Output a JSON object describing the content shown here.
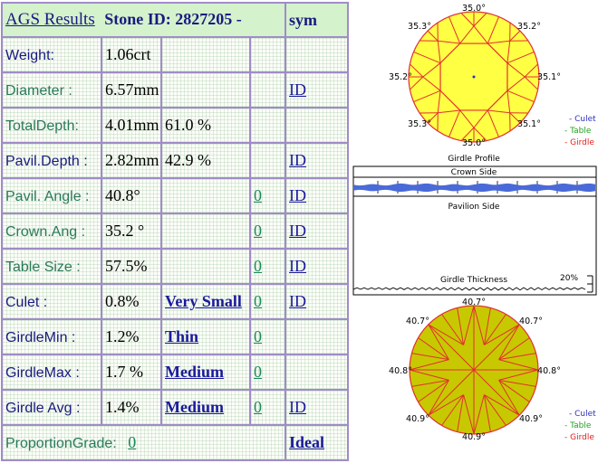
{
  "header": {
    "title": "AGS  Results",
    "stone_id": "Stone ID:  2827205 -",
    "sym": "sym"
  },
  "rows": [
    {
      "label": "Weight:",
      "value": "1.06crt",
      "extra": "",
      "grade": "",
      "link": ""
    },
    {
      "label": "Diameter :",
      "value": "6.57mm",
      "extra": "",
      "grade": "",
      "link": "ID"
    },
    {
      "label": "TotalDepth:",
      "value": "4.01mm",
      "extra": "61.0 %",
      "grade": "",
      "link": ""
    },
    {
      "label": "Pavil.Depth :",
      "value": "2.82mm",
      "extra": "42.9 %",
      "grade": "",
      "link": "ID"
    },
    {
      "label": "Pavil. Angle :",
      "value": "40.8°",
      "extra": "",
      "grade": "0",
      "link": "ID "
    },
    {
      "label": "Crown.Ang :",
      "value": "35.2 °",
      "extra": "",
      "grade": "0",
      "link": "ID"
    },
    {
      "label": "Table Size :",
      "value": "57.5%",
      "extra": "",
      "grade": "0",
      "link": "ID"
    },
    {
      "label": "Culet :",
      "value": "0.8%",
      "extra": "Very Small",
      "grade": "0",
      "link": "ID"
    },
    {
      "label": "GirdleMin :",
      "value": "1.2%",
      "extra": "Thin",
      "grade": "0",
      "link": ""
    },
    {
      "label": "GirdleMax :",
      "value": "1.7 %",
      "extra": "Medium ",
      "grade": "0",
      "link": ""
    },
    {
      "label": "Girdle Avg :",
      "value": "1.4%",
      "extra": "Medium ",
      "grade": "0",
      "link": "ID "
    }
  ],
  "proportion": {
    "label": "ProportionGrade:",
    "grade": "0",
    "result": "Ideal "
  },
  "crown_view": {
    "top": "35.0°",
    "top_left": "35.3°",
    "top_right": "35.2°",
    "left": "35.2°",
    "right": "35.1°",
    "bottom_left": "35.3°",
    "bottom_right": "35.1°",
    "bottom": "35.0°"
  },
  "pavilion_view": {
    "top": "40.7°",
    "top_left": "40.7°",
    "top_right": "40.7°",
    "left": "40.8°",
    "right": "40.8°",
    "bottom_left": "40.9°",
    "bottom_right": "40.9°",
    "bottom": "40.9°"
  },
  "legend_top": {
    "culet": "- Culet",
    "table": "- Table",
    "girdle": "- Girdle"
  },
  "legend_bottom": {
    "culet": "- Culet",
    "table": "- Table",
    "girdle": "- Girdle"
  },
  "girdle_profile": {
    "title": "Girdle Profile",
    "crown_side": "Crown Side",
    "pavilion_side": "Pavilion Side",
    "thickness": "Girdle Thickness",
    "scale": "20%"
  },
  "colors": {
    "table_border": "#a08cc8",
    "header_bg": "#d4f2cc",
    "crown_fill": "#ffff44",
    "pavilion_fill": "#c8c800",
    "facet_line": "#e03030",
    "girdle_band": "#4a6ad8",
    "culet": "#3030c0",
    "table_legend": "#20a020",
    "girdle_legend": "#e02020"
  }
}
